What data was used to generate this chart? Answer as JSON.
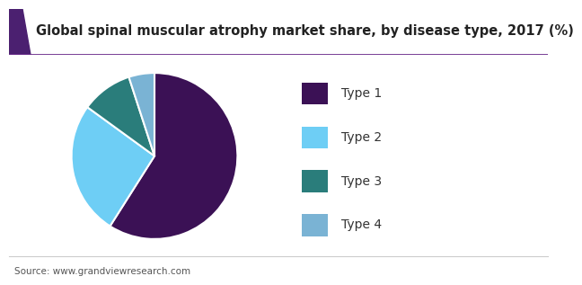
{
  "title": "Global spinal muscular atrophy market share, by disease type, 2017 (%)",
  "labels": [
    "Type 1",
    "Type 2",
    "Type 3",
    "Type 4"
  ],
  "values": [
    59,
    26,
    10,
    5
  ],
  "colors": [
    "#3b1155",
    "#6ecef5",
    "#2a7d7b",
    "#7ab3d4"
  ],
  "startangle": 90,
  "source": "Source: www.grandviewresearch.com",
  "title_fontsize": 10.5,
  "legend_fontsize": 10,
  "source_fontsize": 7.5,
  "bg_color": "#ffffff",
  "header_bg": "#ffffff",
  "title_bar_left_color": "#4b2070",
  "title_bar_bottom_color": "#6b2d8b",
  "title_fontweight": "bold"
}
